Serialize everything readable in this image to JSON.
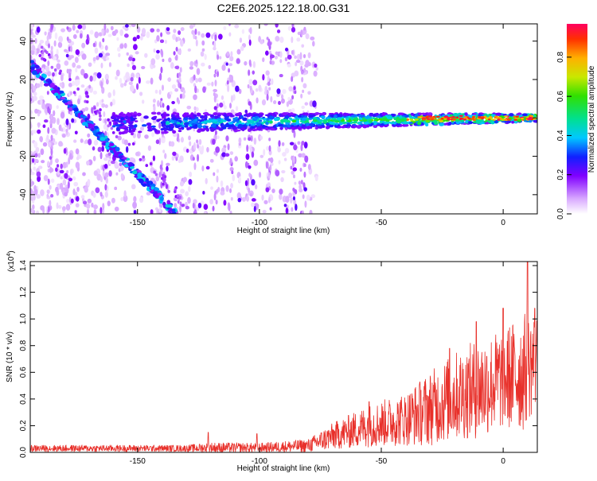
{
  "title": "C2E6.2025.122.18.00.G31",
  "chart_data": [
    {
      "type": "heatmap",
      "xlabel": "Height of straight line (km)",
      "ylabel": "Frequency (Hz)",
      "xlim": [
        -194,
        14
      ],
      "ylim": [
        -50,
        49
      ],
      "xticks": [
        -150,
        -100,
        -50,
        0
      ],
      "yticks": [
        -40,
        -20,
        0,
        20,
        40
      ],
      "grid": false,
      "colorbar": {
        "label": "Normalized spectral amplitude",
        "range": [
          0,
          0.97
        ],
        "ticks": [
          0.0,
          0.2,
          0.4,
          0.6,
          0.8
        ]
      },
      "features": [
        {
          "name": "diagonal band",
          "x_start": -194,
          "y_start": 28,
          "x_end": -134,
          "y_end": -50
        },
        {
          "name": "horizontal band",
          "x_start": -160,
          "y_start": -3,
          "x_end": 14,
          "y_end": 0
        }
      ]
    },
    {
      "type": "line",
      "xlabel": "Height of straight line (km)",
      "ylabel": "SNR (10 * v/v)",
      "multiplier_label": "(x10",
      "multiplier_exp": "4",
      "multiplier_close": ")",
      "xlim": [
        -194,
        14
      ],
      "ylim": [
        0,
        1.43
      ],
      "xticks": [
        -150,
        -100,
        -50,
        0
      ],
      "yticks": [
        0.0,
        0.2,
        0.4,
        0.6,
        0.8,
        1.0,
        1.2,
        1.4
      ],
      "color": "#e8302a",
      "envelope": [
        {
          "x": -194,
          "mean": 0.03,
          "amp": 0.025
        },
        {
          "x": -130,
          "mean": 0.03,
          "amp": 0.025
        },
        {
          "x": -120,
          "mean": 0.035,
          "amp": 0.04
        },
        {
          "x": -100,
          "mean": 0.035,
          "amp": 0.035
        },
        {
          "x": -80,
          "mean": 0.05,
          "amp": 0.05
        },
        {
          "x": -70,
          "mean": 0.12,
          "amp": 0.1
        },
        {
          "x": -55,
          "mean": 0.2,
          "amp": 0.16
        },
        {
          "x": -40,
          "mean": 0.25,
          "amp": 0.2
        },
        {
          "x": -30,
          "mean": 0.33,
          "amp": 0.28
        },
        {
          "x": -20,
          "mean": 0.42,
          "amp": 0.33
        },
        {
          "x": -10,
          "mean": 0.48,
          "amp": 0.38
        },
        {
          "x": 0,
          "mean": 0.55,
          "amp": 0.38
        },
        {
          "x": 8,
          "mean": 0.6,
          "amp": 0.45
        },
        {
          "x": 14,
          "mean": 0.7,
          "amp": 0.35
        }
      ],
      "peaks": [
        {
          "x": -121,
          "y": 0.15
        },
        {
          "x": -101,
          "y": 0.14
        },
        {
          "x": -55,
          "y": 0.38
        },
        {
          "x": -22,
          "y": 0.78
        },
        {
          "x": -11,
          "y": 0.98
        },
        {
          "x": 0,
          "y": 1.08
        },
        {
          "x": 10,
          "y": 1.43
        },
        {
          "x": 13,
          "y": 1.08
        }
      ]
    }
  ]
}
